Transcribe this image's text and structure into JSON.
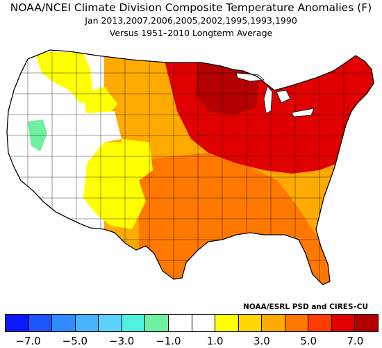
{
  "title": {
    "line1": "NOAA/NCEI Climate Division Composite Temperature Anomalies (F)",
    "line2": "Jan  2013,2007,2006,2005,2002,1995,1993,1990",
    "line3": "Versus 1951–2010 Longterm Average"
  },
  "credit": "NOAA/ESRL PSD and CIRES–CU",
  "colorbar": {
    "colors": [
      "#0a19ff",
      "#1e55ff",
      "#2d8cff",
      "#46b4ff",
      "#5ad2ff",
      "#4ff0dc",
      "#6ef0a0",
      "#ffffff",
      "#ffffff",
      "#ffff00",
      "#ffd700",
      "#ffaa00",
      "#ff7800",
      "#ff3c00",
      "#e10000",
      "#b40000"
    ],
    "labels": [
      "−7.0",
      "−5.0",
      "−3.0",
      "−1.0",
      "1.0",
      "3.0",
      "5.0",
      "7.0"
    ]
  },
  "regions": [
    {
      "name": "western-us",
      "anomaly_class": "near normal",
      "color": "#ffffff"
    },
    {
      "name": "central-nevada",
      "anomaly_class": "-2 to -1",
      "color": "#6ef0a0"
    },
    {
      "name": "northern-rockies",
      "anomaly_class": "1 to 2",
      "color": "#ffff00"
    },
    {
      "name": "southwest",
      "anomaly_class": "1 to 2",
      "color": "#ffff00"
    },
    {
      "name": "great-plains",
      "anomaly_class": "2 to 4",
      "color": "#ffaa00"
    },
    {
      "name": "south-central",
      "anomaly_class": "3 to 4",
      "color": "#ff7800"
    },
    {
      "name": "midwest-northeast",
      "anomaly_class": "5 to 6",
      "color": "#e10000"
    },
    {
      "name": "upper-midwest",
      "anomaly_class": "6 to 7",
      "color": "#b40000"
    }
  ]
}
